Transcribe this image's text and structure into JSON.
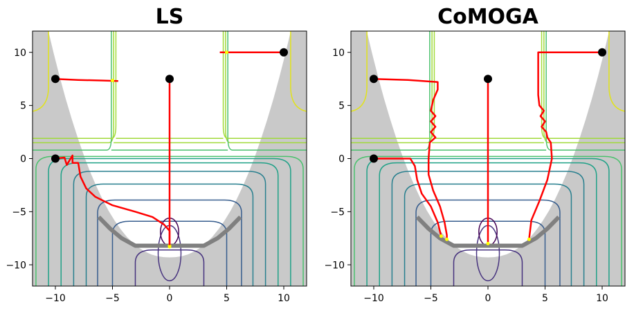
{
  "chart_data": [
    {
      "type": "line",
      "title": "LS",
      "xlim": [
        -12,
        12
      ],
      "ylim": [
        -12,
        12
      ],
      "xticks": [
        -10,
        -5,
        0,
        5,
        10
      ],
      "yticks": [
        10,
        5,
        0,
        -5,
        -10
      ],
      "xtick_labels": [
        "−10",
        "−5",
        "0",
        "5",
        "10"
      ],
      "ytick_labels": [
        "10",
        "5",
        "0",
        "−5",
        "−10"
      ],
      "grid": false,
      "start_points": [
        [
          -10,
          7.5
        ],
        [
          -10,
          0
        ],
        [
          0,
          7.5
        ],
        [
          10,
          10
        ]
      ],
      "pareto_front": [
        [
          -6.2,
          -5.5
        ],
        [
          -5.2,
          -6.6
        ],
        [
          -4.2,
          -7.5
        ],
        [
          -3,
          -8.2
        ],
        [
          3,
          -8.2
        ],
        [
          4.2,
          -7.5
        ],
        [
          5.2,
          -6.6
        ],
        [
          6.2,
          -5.5
        ]
      ],
      "trajectories": [
        {
          "points": [
            [
              -10,
              7.5
            ],
            [
              -8,
              7.4
            ],
            [
              -6,
              7.35
            ],
            [
              -4.5,
              7.3
            ]
          ],
          "end": [
            -5,
            7.35
          ]
        },
        {
          "points": [
            [
              -10,
              0
            ],
            [
              -9.2,
              0.1
            ],
            [
              -9.0,
              -0.6
            ],
            [
              -8.5,
              0.3
            ],
            [
              -8.5,
              -0.4
            ],
            [
              -8.0,
              -0.4
            ],
            [
              -7.8,
              -1.7
            ],
            [
              -7.3,
              -2.8
            ],
            [
              -6.5,
              -3.6
            ],
            [
              -5.0,
              -4.4
            ],
            [
              -3.0,
              -5.0
            ],
            [
              -1.5,
              -5.5
            ],
            [
              -0.5,
              -6.2
            ],
            [
              0,
              -6.8
            ],
            [
              0,
              -8.2
            ]
          ],
          "end": [
            0,
            -8.2
          ]
        },
        {
          "points": [
            [
              0,
              7.5
            ],
            [
              0,
              -8.3
            ]
          ],
          "end": [
            0,
            -8.3
          ]
        },
        {
          "points": [
            [
              10,
              10
            ],
            [
              8,
              10
            ],
            [
              6,
              10
            ],
            [
              4.4,
              10
            ]
          ],
          "end": [
            5,
            10
          ]
        }
      ]
    },
    {
      "type": "line",
      "title": "CoMOGA",
      "xlim": [
        -12,
        12
      ],
      "ylim": [
        -12,
        12
      ],
      "xticks": [
        -10,
        -5,
        0,
        5,
        10
      ],
      "yticks": [
        10,
        5,
        0,
        -5,
        -10
      ],
      "xtick_labels": [
        "−10",
        "−5",
        "0",
        "5",
        "10"
      ],
      "ytick_labels": [
        "10",
        "5",
        "0",
        "−5",
        "−10"
      ],
      "grid": false,
      "start_points": [
        [
          -10,
          7.5
        ],
        [
          -10,
          0
        ],
        [
          0,
          7.5
        ],
        [
          10,
          10
        ]
      ],
      "pareto_front": [
        [
          -6.2,
          -5.5
        ],
        [
          -5.2,
          -6.6
        ],
        [
          -4.2,
          -7.5
        ],
        [
          -3,
          -8.2
        ],
        [
          3,
          -8.2
        ],
        [
          4.2,
          -7.5
        ],
        [
          5.2,
          -6.6
        ],
        [
          6.2,
          -5.5
        ]
      ],
      "trajectories": [
        {
          "points": [
            [
              -10,
              7.5
            ],
            [
              -7,
              7.4
            ],
            [
              -4.4,
              7.2
            ],
            [
              -4.4,
              6.5
            ],
            [
              -4.8,
              5.5
            ],
            [
              -5.0,
              4.5
            ],
            [
              -4.6,
              4.0
            ],
            [
              -5.0,
              3.5
            ],
            [
              -4.6,
              3.0
            ],
            [
              -5.0,
              2.5
            ],
            [
              -4.6,
              2.0
            ],
            [
              -5.1,
              1.5
            ],
            [
              -5.2,
              0
            ],
            [
              -5.2,
              -1.5
            ],
            [
              -4.8,
              -3.0
            ],
            [
              -4.2,
              -4.5
            ],
            [
              -3.8,
              -6.0
            ],
            [
              -3.6,
              -7.2
            ],
            [
              -3.6,
              -7.6
            ]
          ],
          "end": [
            -3.6,
            -7.6
          ]
        },
        {
          "points": [
            [
              -10,
              0
            ],
            [
              -6.8,
              0
            ],
            [
              -6.4,
              -0.7
            ],
            [
              -6.2,
              -2.0
            ],
            [
              -5.8,
              -3.3
            ],
            [
              -5.0,
              -4.5
            ],
            [
              -4.4,
              -6.0
            ],
            [
              -4.1,
              -7.3
            ]
          ],
          "end": [
            -4.1,
            -7.3
          ]
        },
        {
          "points": [
            [
              0,
              7.5
            ],
            [
              0,
              -8.0
            ]
          ],
          "end": [
            0,
            -8.0
          ]
        },
        {
          "points": [
            [
              10,
              10
            ],
            [
              8,
              10
            ],
            [
              4.4,
              10
            ],
            [
              4.4,
              9.0
            ],
            [
              4.4,
              6.0
            ],
            [
              4.5,
              5.0
            ],
            [
              4.9,
              4.5
            ],
            [
              4.6,
              4.0
            ],
            [
              5.0,
              3.5
            ],
            [
              4.7,
              3.0
            ],
            [
              5.1,
              2.5
            ],
            [
              5.2,
              2.0
            ],
            [
              5.5,
              1.5
            ],
            [
              5.6,
              0
            ],
            [
              5.2,
              -2.0
            ],
            [
              4.5,
              -4.0
            ],
            [
              3.8,
              -5.8
            ],
            [
              3.6,
              -7.6
            ]
          ],
          "end": [
            3.6,
            -7.6
          ]
        }
      ]
    }
  ]
}
